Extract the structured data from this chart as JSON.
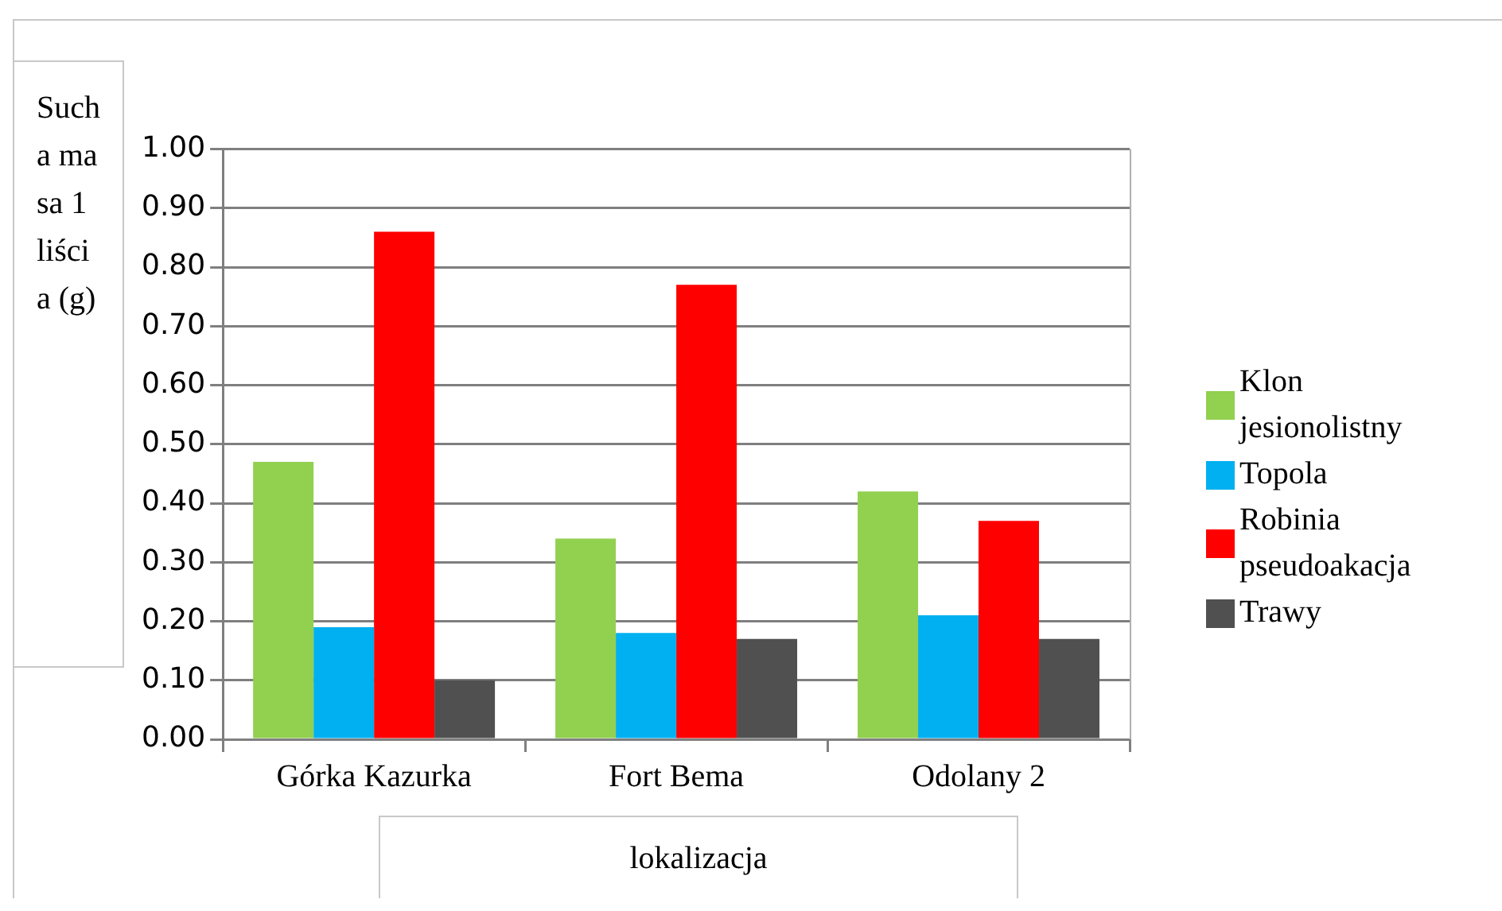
{
  "chart_data": {
    "type": "bar",
    "categories": [
      "Górka Kazurka",
      "Fort Bema",
      "Odolany 2"
    ],
    "series": [
      {
        "name": "Klon jesionolistny",
        "color": "#92d050",
        "values": [
          0.47,
          0.34,
          0.42
        ]
      },
      {
        "name": "Topola",
        "color": "#00b0f0",
        "values": [
          0.19,
          0.18,
          0.21
        ]
      },
      {
        "name": "Robinia pseudoakacja",
        "color": "#ff0000",
        "values": [
          0.86,
          0.77,
          0.37
        ]
      },
      {
        "name": "Trawy",
        "color": "#505050",
        "values": [
          0.1,
          0.17,
          0.17
        ]
      }
    ],
    "xlabel": "lokalizacja",
    "ylabel": "Sucha masa 1 liścia (g)",
    "ylim": [
      0,
      1
    ],
    "yticks": [
      {
        "value": 0,
        "label": "0.00"
      },
      {
        "value": 0.1,
        "label": "0.10"
      },
      {
        "value": 0.2,
        "label": "0.20"
      },
      {
        "value": 0.3,
        "label": "0.30"
      },
      {
        "value": 0.4,
        "label": "0.40"
      },
      {
        "value": 0.5,
        "label": "0.50"
      },
      {
        "value": 0.6,
        "label": "0.60"
      },
      {
        "value": 0.7,
        "label": "0.70"
      },
      {
        "value": 0.8,
        "label": "0.80"
      },
      {
        "value": 0.9,
        "label": "0.90"
      },
      {
        "value": 1,
        "label": "1.00"
      }
    ],
    "grid": "y",
    "legend": "right"
  }
}
